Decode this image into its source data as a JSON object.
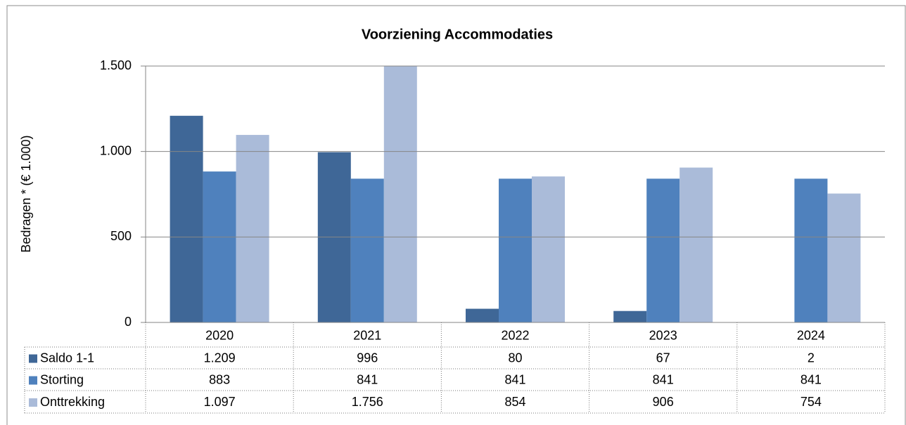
{
  "chart_data": {
    "type": "bar",
    "title": "Voorziening Accommodaties",
    "y_label": "Bedragen * (€ 1.000)",
    "categories": [
      "2020",
      "2021",
      "2022",
      "2023",
      "2024"
    ],
    "series": [
      {
        "name": "Saldo 1-1",
        "color": "#3f6797",
        "values": [
          1209,
          996,
          80,
          67,
          2
        ],
        "value_labels": [
          "1.209",
          "996",
          "80",
          "67",
          "2"
        ]
      },
      {
        "name": "Storting",
        "color": "#4f81bd",
        "values": [
          883,
          841,
          841,
          841,
          841
        ],
        "value_labels": [
          "883",
          "841",
          "841",
          "841",
          "841"
        ]
      },
      {
        "name": "Onttrekking",
        "color": "#aabbd9",
        "values": [
          1097,
          1756,
          854,
          906,
          754
        ],
        "value_labels": [
          "1.097",
          "1.756",
          "854",
          "906",
          "754"
        ]
      }
    ],
    "ylim": [
      0,
      1500
    ],
    "yticks": [
      0,
      500,
      {
        "value": 1000,
        "label": "1.000"
      },
      {
        "value": 1500,
        "label": "1.500"
      }
    ],
    "grid": true,
    "legend": "table"
  }
}
